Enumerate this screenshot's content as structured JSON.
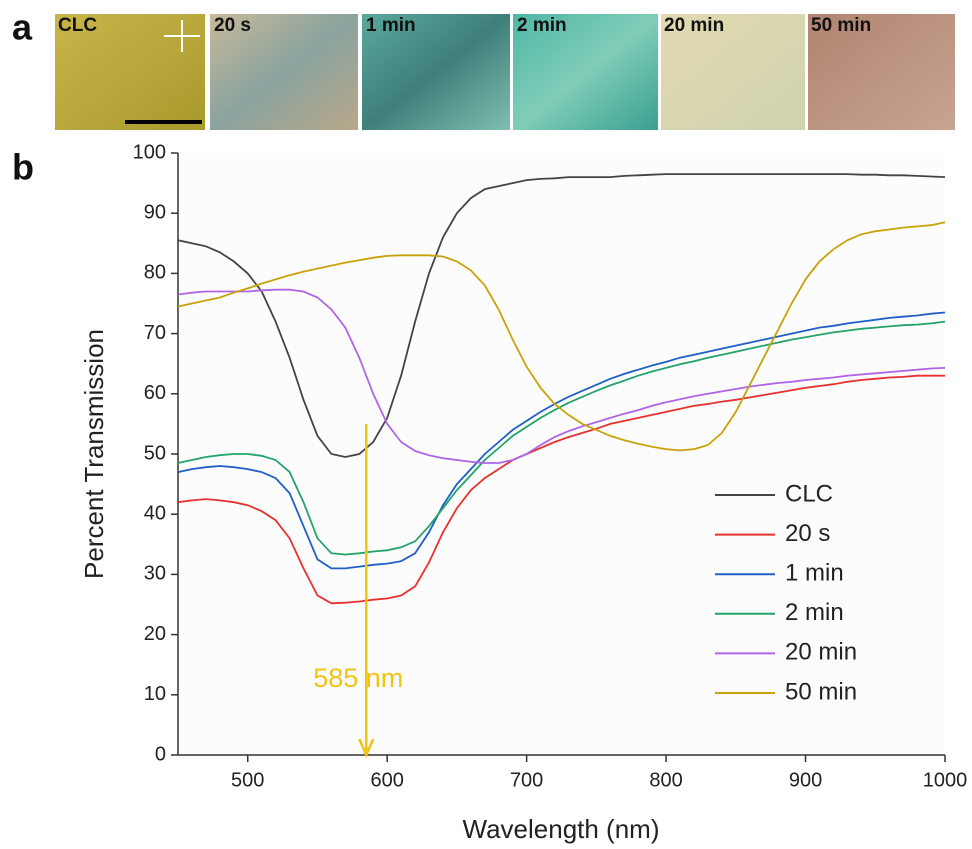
{
  "panel_labels": [
    "a",
    "b"
  ],
  "micrographs": [
    {
      "label": "CLC"
    },
    {
      "label": "20 s"
    },
    {
      "label": "1 min"
    },
    {
      "label": "2 min"
    },
    {
      "label": "20 min"
    },
    {
      "label": "50 min"
    }
  ],
  "chart_data": {
    "type": "line",
    "x_label": "Wavelength (nm)",
    "y_label": "Percent Transmission",
    "xlim": [
      450,
      1000
    ],
    "ylim": [
      0,
      100
    ],
    "xticks": [
      500,
      600,
      700,
      800,
      900,
      1000
    ],
    "yticks": [
      0,
      10,
      20,
      30,
      40,
      50,
      60,
      70,
      80,
      90,
      100
    ],
    "legend": "lower right",
    "x": [
      450,
      460,
      470,
      480,
      490,
      500,
      510,
      520,
      530,
      540,
      550,
      560,
      570,
      580,
      590,
      600,
      610,
      620,
      630,
      640,
      650,
      660,
      670,
      680,
      690,
      700,
      710,
      720,
      730,
      740,
      750,
      760,
      770,
      780,
      790,
      800,
      810,
      820,
      830,
      840,
      850,
      860,
      870,
      880,
      890,
      900,
      910,
      920,
      930,
      940,
      950,
      960,
      970,
      980,
      990,
      1000
    ],
    "series": [
      {
        "name": "CLC",
        "color": "#444444",
        "values": [
          85.5,
          85,
          84.5,
          83.5,
          82,
          80,
          77,
          72,
          66,
          59,
          53,
          50,
          49.5,
          50,
          52,
          56,
          63,
          72,
          80,
          86,
          90,
          92.5,
          94,
          94.5,
          95,
          95.5,
          95.7,
          95.8,
          96,
          96,
          96,
          96,
          96.2,
          96.3,
          96.4,
          96.5,
          96.5,
          96.5,
          96.5,
          96.5,
          96.5,
          96.5,
          96.5,
          96.5,
          96.5,
          96.5,
          96.5,
          96.5,
          96.5,
          96.4,
          96.4,
          96.3,
          96.3,
          96.2,
          96.1,
          96
        ]
      },
      {
        "name": "20 s",
        "color": "#e8312f",
        "values": [
          42,
          42.3,
          42.5,
          42.3,
          42,
          41.5,
          40.5,
          39,
          36,
          31,
          26.5,
          25.2,
          25.3,
          25.5,
          25.8,
          26,
          26.5,
          28,
          32,
          37,
          41,
          44,
          46,
          47.5,
          49,
          50,
          51,
          52,
          52.8,
          53.5,
          54.2,
          55,
          55.5,
          56,
          56.5,
          57,
          57.5,
          58,
          58.3,
          58.7,
          59,
          59.4,
          59.8,
          60.2,
          60.6,
          61,
          61.3,
          61.6,
          62,
          62.3,
          62.5,
          62.7,
          62.8,
          63,
          63,
          63
        ]
      },
      {
        "name": "1 min",
        "color": "#1f5fc8",
        "values": [
          47,
          47.5,
          47.8,
          48,
          47.8,
          47.5,
          47,
          46,
          43.5,
          38,
          32.5,
          31,
          31,
          31.3,
          31.6,
          31.8,
          32.2,
          33.5,
          37,
          41.5,
          45,
          47.5,
          50,
          52,
          54,
          55.5,
          57,
          58.3,
          59.5,
          60.5,
          61.5,
          62.5,
          63.3,
          64,
          64.7,
          65.3,
          66,
          66.5,
          67,
          67.5,
          68,
          68.5,
          69,
          69.5,
          70,
          70.5,
          71,
          71.3,
          71.7,
          72,
          72.3,
          72.6,
          72.8,
          73,
          73.3,
          73.5
        ]
      },
      {
        "name": "2 min",
        "color": "#23a36b",
        "values": [
          48.5,
          49,
          49.5,
          49.8,
          50,
          50,
          49.7,
          49,
          47,
          42,
          36,
          33.5,
          33.3,
          33.5,
          33.8,
          34,
          34.5,
          35.5,
          38,
          41,
          44,
          46.5,
          49,
          51,
          53,
          54.5,
          56,
          57.3,
          58.5,
          59.5,
          60.5,
          61.4,
          62.2,
          63,
          63.7,
          64.3,
          64.9,
          65.4,
          66,
          66.5,
          67,
          67.5,
          68,
          68.5,
          69,
          69.4,
          69.8,
          70.2,
          70.5,
          70.8,
          71,
          71.2,
          71.4,
          71.5,
          71.7,
          72
        ]
      },
      {
        "name": "20 min",
        "color": "#b065e6",
        "values": [
          76.5,
          76.8,
          77,
          77,
          77,
          77,
          77.2,
          77.3,
          77.3,
          77,
          76,
          74,
          71,
          66,
          60,
          55,
          52,
          50.5,
          49.8,
          49.3,
          49,
          48.7,
          48.5,
          48.5,
          49,
          50,
          51.5,
          52.8,
          53.8,
          54.6,
          55.3,
          56,
          56.7,
          57.3,
          58,
          58.6,
          59.1,
          59.6,
          60,
          60.4,
          60.8,
          61.2,
          61.5,
          61.8,
          62,
          62.3,
          62.5,
          62.7,
          63,
          63.2,
          63.4,
          63.6,
          63.8,
          64,
          64.2,
          64.3
        ]
      },
      {
        "name": "50 min",
        "color": "#c9a20a",
        "values": [
          74.5,
          75,
          75.5,
          76,
          76.8,
          77.5,
          78.3,
          79,
          79.7,
          80.3,
          80.8,
          81.3,
          81.8,
          82.2,
          82.6,
          82.9,
          83,
          83,
          83,
          82.8,
          82,
          80.5,
          78,
          74,
          69,
          64.5,
          61,
          58.3,
          56.5,
          55,
          54,
          53,
          52.3,
          51.7,
          51.2,
          50.8,
          50.6,
          50.8,
          51.5,
          53.5,
          57,
          61.5,
          66,
          70.5,
          75,
          79,
          82,
          84,
          85.5,
          86.5,
          87,
          87.3,
          87.6,
          87.8,
          88,
          88.5
        ]
      }
    ],
    "annotations": [
      {
        "text": "585 nm",
        "x": 585,
        "y_from": 55,
        "y_to": 0,
        "color": "#f2c313"
      }
    ]
  }
}
